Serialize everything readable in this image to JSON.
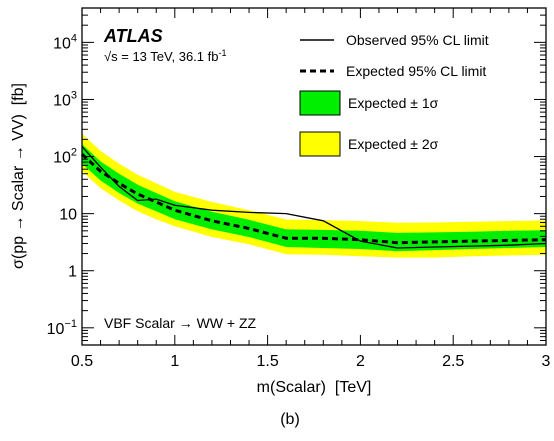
{
  "chart_data": {
    "type": "line",
    "experiment": "ATLAS",
    "energy_prefix": "√s = 13 TeV, 36.1 fb",
    "lumi_exp": "-1",
    "process_label": "VBF Scalar → WW + ZZ",
    "xlabel": "m(Scalar)  [TeV]",
    "ylabel": "σ(pp → Scalar → VV)  [fb]",
    "panel_label": "(b)",
    "xlim": [
      0.5,
      3.0
    ],
    "ylim": [
      0.05,
      40000
    ],
    "yscale": "log",
    "x_ticks": [
      {
        "value": 0.5,
        "label": "0.5"
      },
      {
        "value": 1.0,
        "label": "1"
      },
      {
        "value": 1.5,
        "label": "1.5"
      },
      {
        "value": 2.0,
        "label": "2"
      },
      {
        "value": 2.5,
        "label": "2.5"
      },
      {
        "value": 3.0,
        "label": "3"
      }
    ],
    "y_ticks": [
      {
        "value": 0.1,
        "base": "10",
        "exp": "−1"
      },
      {
        "value": 1,
        "base": "1",
        "exp": ""
      },
      {
        "value": 10,
        "base": "10",
        "exp": ""
      },
      {
        "value": 100,
        "base": "10",
        "exp": "2"
      },
      {
        "value": 1000,
        "base": "10",
        "exp": "3"
      },
      {
        "value": 10000,
        "base": "10",
        "exp": "4"
      }
    ],
    "legend": {
      "observed": "Observed 95% CL limit",
      "expected": "Expected 95% CL limit",
      "one_sigma": "Expected ± 1σ",
      "two_sigma": "Expected ± 2σ"
    },
    "colors": {
      "one_sigma": "#00ee00",
      "two_sigma": "#ffff00",
      "line": "#000000"
    },
    "x": [
      0.5,
      0.6,
      0.7,
      0.8,
      0.9,
      1.0,
      1.2,
      1.4,
      1.6,
      1.8,
      2.0,
      2.2,
      2.4,
      2.6,
      2.8,
      3.0
    ],
    "series": [
      {
        "name": "Observed 95% CL limit",
        "x": [
          0.5,
          0.6,
          0.7,
          0.8,
          0.9,
          1.0,
          1.2,
          1.4,
          1.6,
          1.8,
          2.0,
          2.2,
          2.4,
          2.6,
          2.8,
          3.0
        ],
        "values": [
          150,
          65,
          30,
          17,
          18,
          14,
          11.5,
          10.5,
          10,
          7.5,
          3.3,
          2.5,
          2.6,
          2.7,
          2.8,
          3.0
        ]
      },
      {
        "name": "Expected 95% CL limit",
        "x": [
          0.5,
          0.6,
          0.7,
          0.8,
          0.9,
          1.0,
          1.2,
          1.4,
          1.6,
          1.8,
          2.0,
          2.2,
          2.4,
          2.6,
          2.8,
          3.0
        ],
        "values": [
          110,
          55,
          34,
          22,
          16,
          11.5,
          7.5,
          5.5,
          3.7,
          3.7,
          3.5,
          3.1,
          3.2,
          3.3,
          3.4,
          3.5
        ]
      }
    ],
    "band_1sigma": {
      "low": [
        75,
        38,
        23,
        15,
        11,
        8,
        5.3,
        3.9,
        2.6,
        2.5,
        2.4,
        2.2,
        2.3,
        2.4,
        2.5,
        2.6
      ],
      "high": [
        165,
        82,
        50,
        32,
        23,
        16.5,
        10.8,
        7.8,
        5.3,
        5.2,
        5.0,
        4.6,
        4.7,
        4.8,
        5.0,
        5.1
      ]
    },
    "band_2sigma": {
      "low": [
        55,
        28,
        17,
        11,
        8,
        6,
        3.9,
        2.9,
        1.95,
        1.9,
        1.8,
        1.7,
        1.7,
        1.8,
        1.85,
        1.9
      ],
      "high": [
        250,
        125,
        75,
        48,
        34,
        24,
        16,
        11.5,
        7.9,
        7.7,
        7.4,
        6.9,
        7.0,
        7.2,
        7.4,
        7.6
      ]
    }
  }
}
